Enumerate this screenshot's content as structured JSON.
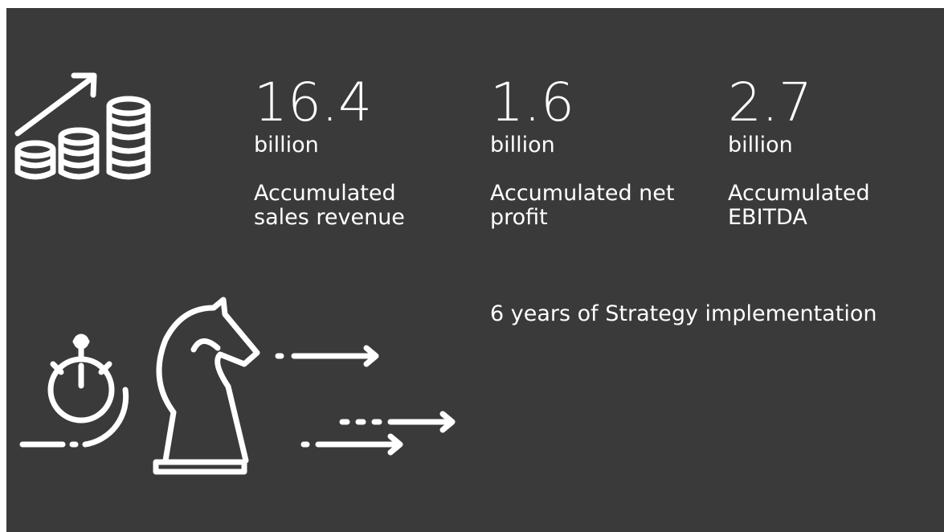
{
  "stats": [
    {
      "value": 16.4,
      "unit": "billion",
      "label": "Accumulated sales revenue"
    },
    {
      "value": 1.6,
      "unit": "billion",
      "label": "Accumulated net profit"
    },
    {
      "value": 2.7,
      "unit": "billion",
      "label": "Accumulated EBITDA"
    }
  ],
  "caption": "6 years of Strategy implementation"
}
